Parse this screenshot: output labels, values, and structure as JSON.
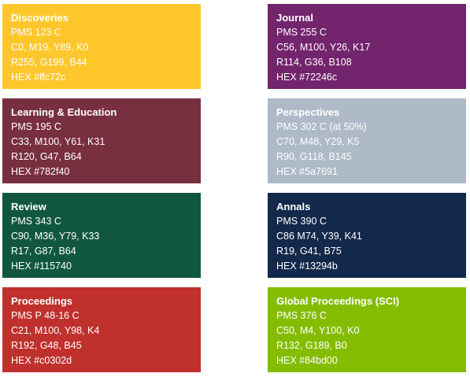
{
  "swatches": [
    {
      "name": "Discoveries",
      "pms": "PMS 123 C",
      "cmyk": "C0, M19, Y89, K0",
      "rgb": "R255, G199, B44",
      "hex_label": "HEX #ffc72c",
      "color": "#ffc72c"
    },
    {
      "name": "Journal",
      "pms": "PMS 255 C",
      "cmyk": "C56, M100, Y26, K17",
      "rgb": "R114, G36, B108",
      "hex_label": "HEX #72246c",
      "color": "#72246c"
    },
    {
      "name": "Learning & Education",
      "pms": "PMS 195 C",
      "cmyk": "C33, M100, Y61, K31",
      "rgb": "R120, G47, B64",
      "hex_label": "HEX #782f40",
      "color": "#782f40"
    },
    {
      "name": "Perspectives",
      "pms": "PMS 302 C (at 50%)",
      "cmyk": "C70, M48, Y29, K5",
      "rgb": "R90, G118, B145",
      "hex_label": "HEX #5a7691",
      "color": "#aebac8"
    },
    {
      "name": "Review",
      "pms": "PMS 343 C",
      "cmyk": "C90, M36, Y79, K33",
      "rgb": "R17, G87, B64",
      "hex_label": "HEX #115740",
      "color": "#115740"
    },
    {
      "name": "Annals",
      "pms": "PMS 390 C",
      "cmyk": "C86 M74, Y39, K41",
      "rgb": "R19, G41, B75",
      "hex_label": "HEX #13294b",
      "color": "#13294b"
    },
    {
      "name": "Proceedings",
      "pms": "PMS P 48-16 C",
      "cmyk": "C21, M100, Y98, K4",
      "rgb": "R192, G48, B45",
      "hex_label": "HEX #c0302d",
      "color": "#c0302d"
    },
    {
      "name": "Global Proceedings (SCI)",
      "pms": "PMS 376 C",
      "cmyk": "C50, M4, Y100, K0",
      "rgb": "R132, G189, B0",
      "hex_label": "HEX #84bd00",
      "color": "#84bd00"
    }
  ]
}
